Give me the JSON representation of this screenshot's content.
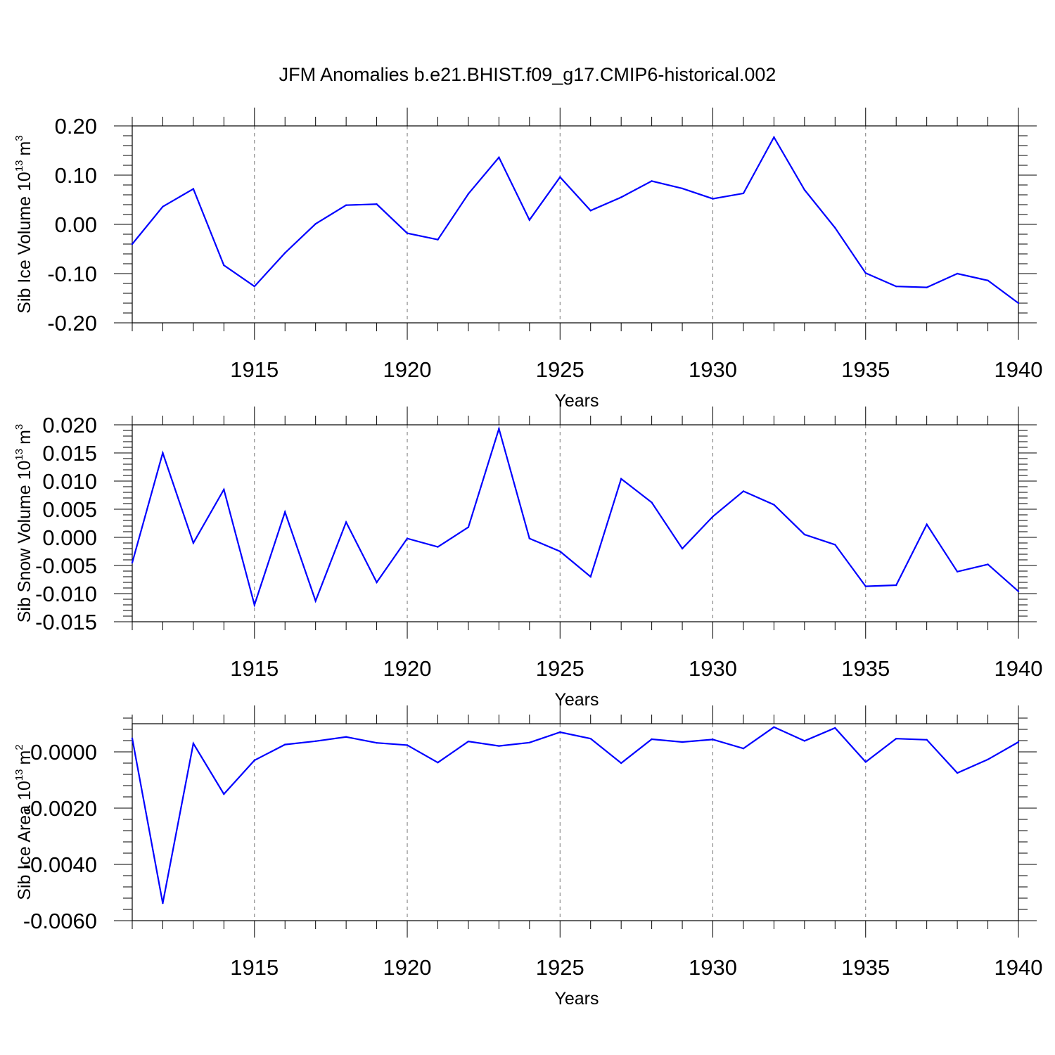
{
  "chart_data": {
    "title": "JFM Anomalies b.e21.BHIST.f09_g17.CMIP6-historical.002",
    "type": "line",
    "line_color": "#0000ff",
    "grid": "dashed vertical at major ticks",
    "panels": [
      {
        "id": "ice-volume",
        "type": "line",
        "ylabel": "Sib Ice Volume 10",
        "ylabel_exponent": "13",
        "ylabel_unit": "m",
        "ylabel_unit_exponent": "3",
        "xlabel": "Years",
        "xlim": [
          1911,
          1940
        ],
        "ylim": [
          -0.2,
          0.2
        ],
        "yticks": [
          "0.20",
          "0.10",
          "0.00",
          "-0.10",
          "-0.20"
        ],
        "ytick_values": [
          0.2,
          0.1,
          0.0,
          -0.1,
          -0.2
        ],
        "xticks": [
          "1915",
          "1920",
          "1925",
          "1930",
          "1935",
          "1940"
        ],
        "xtick_values": [
          1915,
          1920,
          1925,
          1930,
          1935,
          1940
        ],
        "x": [
          1911,
          1912,
          1913,
          1914,
          1915,
          1916,
          1917,
          1918,
          1919,
          1920,
          1921,
          1922,
          1923,
          1924,
          1925,
          1926,
          1927,
          1928,
          1929,
          1930,
          1931,
          1932,
          1933,
          1934,
          1935,
          1936,
          1937,
          1938,
          1939,
          1940
        ],
        "values": [
          -0.04,
          0.036,
          0.072,
          -0.083,
          -0.126,
          -0.058,
          0.001,
          0.039,
          0.041,
          -0.018,
          -0.031,
          0.062,
          0.136,
          0.009,
          0.096,
          0.028,
          0.055,
          0.088,
          0.073,
          0.052,
          0.063,
          0.177,
          0.07,
          -0.007,
          -0.099,
          -0.126,
          -0.128,
          -0.1,
          -0.114,
          -0.16
        ]
      },
      {
        "id": "snow-volume",
        "type": "line",
        "ylabel": "Sib Snow Volume 10",
        "ylabel_exponent": "13",
        "ylabel_unit": "m",
        "ylabel_unit_exponent": "3",
        "xlabel": "Years",
        "xlim": [
          1911,
          1940
        ],
        "ylim": [
          -0.015,
          0.02
        ],
        "yticks": [
          "0.020",
          "0.015",
          "0.010",
          "0.005",
          "0.000",
          "-0.005",
          "-0.010",
          "-0.015"
        ],
        "ytick_values": [
          0.02,
          0.015,
          0.01,
          0.005,
          0.0,
          -0.005,
          -0.01,
          -0.015
        ],
        "xticks": [
          "1915",
          "1920",
          "1925",
          "1930",
          "1935",
          "1940"
        ],
        "xtick_values": [
          1915,
          1920,
          1925,
          1930,
          1935,
          1940
        ],
        "x": [
          1911,
          1912,
          1913,
          1914,
          1915,
          1916,
          1917,
          1918,
          1919,
          1920,
          1921,
          1922,
          1923,
          1924,
          1925,
          1926,
          1927,
          1928,
          1929,
          1930,
          1931,
          1932,
          1933,
          1934,
          1935,
          1936,
          1937,
          1938,
          1939,
          1940
        ],
        "values": [
          -0.0045,
          0.015,
          -0.001,
          0.0085,
          -0.012,
          0.0045,
          -0.0113,
          0.0027,
          -0.008,
          -0.0002,
          -0.0017,
          0.0018,
          0.0193,
          -0.0002,
          -0.0025,
          -0.007,
          0.0104,
          0.0062,
          -0.002,
          0.0037,
          0.0082,
          0.0058,
          0.0005,
          -0.0013,
          -0.0087,
          -0.0085,
          0.0023,
          -0.0061,
          -0.0048,
          -0.0096
        ]
      },
      {
        "id": "ice-area",
        "type": "line",
        "ylabel": "Sib Ice Area 10",
        "ylabel_exponent": "13",
        "ylabel_unit": "m",
        "ylabel_unit_exponent": "2",
        "xlabel": "Years",
        "xlim": [
          1911,
          1940
        ],
        "ylim": [
          -0.006,
          0.001
        ],
        "yticks": [
          "0.0000",
          "-0.0020",
          "-0.0040",
          "-0.0060"
        ],
        "ytick_values": [
          0.0,
          -0.002,
          -0.004,
          -0.006
        ],
        "xticks": [
          "1915",
          "1920",
          "1925",
          "1930",
          "1935",
          "1940"
        ],
        "xtick_values": [
          1915,
          1920,
          1925,
          1930,
          1935,
          1940
        ],
        "x": [
          1911,
          1912,
          1913,
          1914,
          1915,
          1916,
          1917,
          1918,
          1919,
          1920,
          1921,
          1922,
          1923,
          1924,
          1925,
          1926,
          1927,
          1928,
          1929,
          1930,
          1931,
          1932,
          1933,
          1934,
          1935,
          1936,
          1937,
          1938,
          1939,
          1940
        ],
        "values": [
          0.00048,
          -0.00538,
          0.0003,
          -0.0015,
          -0.0003,
          0.00026,
          0.00038,
          0.00053,
          0.00032,
          0.00024,
          -0.00038,
          0.00037,
          0.00021,
          0.00033,
          0.0007,
          0.00047,
          -0.0004,
          0.00045,
          0.00035,
          0.00044,
          0.00012,
          0.00088,
          0.00039,
          0.00085,
          -0.00036,
          0.00047,
          0.00043,
          -0.00075,
          -0.00027,
          0.00035
        ]
      }
    ]
  }
}
